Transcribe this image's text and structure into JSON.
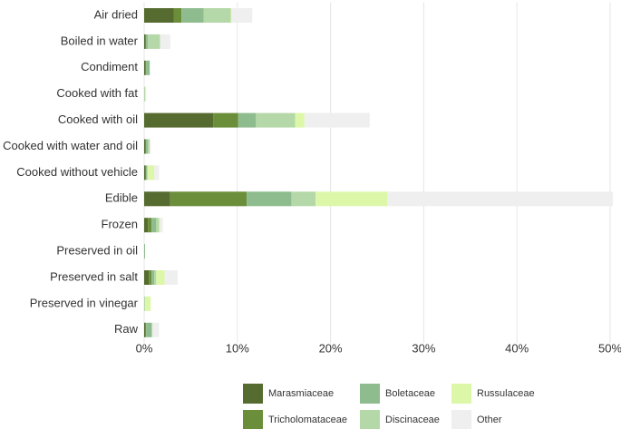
{
  "chart_data": {
    "type": "bar",
    "orientation": "horizontal",
    "stacked": true,
    "title": "",
    "xlabel": "",
    "ylabel": "",
    "xlim": [
      0,
      50
    ],
    "x_ticks": [
      0,
      10,
      20,
      30,
      40,
      50
    ],
    "x_tick_labels": [
      "0%",
      "10%",
      "20%",
      "30%",
      "40%",
      "50%"
    ],
    "grid": true,
    "legend_position": "bottom",
    "categories": [
      "Air dried",
      "Boiled in water",
      "Condiment",
      "Cooked with fat",
      "Cooked with oil",
      "Cooked with water and oil",
      "Cooked without vehicle",
      "Edible",
      "Frozen",
      "Preserved in oil",
      "Preserved in salt",
      "Preserved in vinegar",
      "Raw"
    ],
    "series": [
      {
        "name": "Marasmiaceae",
        "color": "#556b2f",
        "values": [
          3.2,
          0.1,
          0.1,
          0,
          7.4,
          0.1,
          0.1,
          2.8,
          0.4,
          0,
          0.5,
          0,
          0.1
        ]
      },
      {
        "name": "Tricholomataceae",
        "color": "#6b8e3a",
        "values": [
          0.8,
          0.1,
          0.1,
          0,
          2.7,
          0.1,
          0.1,
          8.2,
          0.4,
          0,
          0.3,
          0,
          0.1
        ]
      },
      {
        "name": "Boletaceae",
        "color": "#8fbc8f",
        "values": [
          2.4,
          0.2,
          0.4,
          0,
          1.9,
          0.2,
          0.1,
          4.8,
          0.5,
          0.1,
          0.3,
          0,
          0.6
        ]
      },
      {
        "name": "Discinaceae",
        "color": "#b5d8a8",
        "values": [
          2.9,
          1.3,
          0,
          0.1,
          4.2,
          0.2,
          0.1,
          2.6,
          0.3,
          0,
          0.2,
          0.1,
          0.1
        ]
      },
      {
        "name": "Russulaceae",
        "color": "#ddf7a9",
        "values": [
          0.1,
          0,
          0,
          0.1,
          1.0,
          0,
          0.7,
          7.7,
          0.1,
          0,
          0.9,
          0.6,
          0
        ]
      },
      {
        "name": "Other",
        "color": "#efefef",
        "values": [
          2.2,
          1.1,
          0,
          0,
          7.0,
          0.1,
          0.5,
          24.2,
          0.3,
          0,
          1.4,
          0,
          0.7
        ]
      }
    ]
  }
}
